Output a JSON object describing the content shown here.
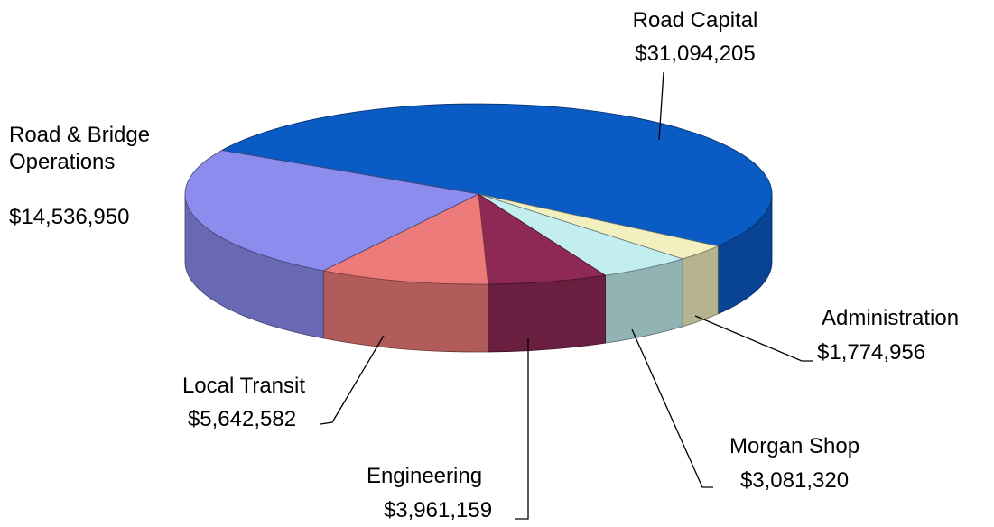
{
  "chart_data": {
    "type": "pie3d",
    "categories": [
      "Road Capital",
      "Administration",
      "Morgan Shop",
      "Engineering",
      "Local Transit",
      "Road & Bridge Operations"
    ],
    "values": [
      31094205,
      1774956,
      3081320,
      3961159,
      5642582,
      14536950
    ],
    "value_labels": [
      "$31,094,205",
      "$1,774,956",
      "$3,081,320",
      "$3,961,159",
      "$5,642,582",
      "$14,536,950"
    ],
    "colors": [
      "#0a5bc4",
      "#f3f0c0",
      "#c2eef0",
      "#8e2955",
      "#ec7a78",
      "#8c8cef"
    ]
  }
}
